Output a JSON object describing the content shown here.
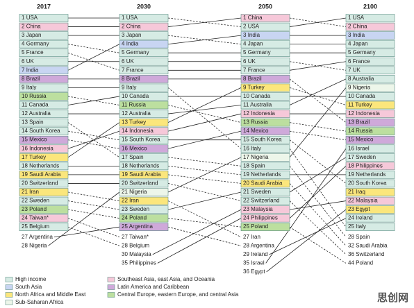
{
  "legend": [
    {
      "label": "High income",
      "color": "#d6ebe4"
    },
    {
      "label": "South Asia",
      "color": "#c8d5f2"
    },
    {
      "label": "North Africa and Middle East",
      "color": "#fbe67c"
    },
    {
      "label": "Sub-Saharan Africa",
      "color": "#edf6ea"
    },
    {
      "label": "Southeast Asia, east Asia, and Oceania",
      "color": "#f6c8d9"
    },
    {
      "label": "Latin America and Caribbean",
      "color": "#cfa9da"
    },
    {
      "label": "Central Europe, eastern Europe, and central Asia",
      "color": "#bcdf9f"
    }
  ],
  "columns": [
    {
      "year": "2017",
      "entries": [
        {
          "rank": "1",
          "country": "USA",
          "region": 0
        },
        {
          "rank": "2",
          "country": "China",
          "region": 4
        },
        {
          "rank": "3",
          "country": "Japan",
          "region": 0
        },
        {
          "rank": "4",
          "country": "Germany",
          "region": 0
        },
        {
          "rank": "5",
          "country": "France",
          "region": 0
        },
        {
          "rank": "6",
          "country": "UK",
          "region": 0
        },
        {
          "rank": "7",
          "country": "India",
          "region": 1
        },
        {
          "rank": "8",
          "country": "Brazil",
          "region": 5
        },
        {
          "rank": "9",
          "country": "Italy",
          "region": 0
        },
        {
          "rank": "10",
          "country": "Russia",
          "region": 6
        },
        {
          "rank": "11",
          "country": "Canada",
          "region": 0
        },
        {
          "rank": "12",
          "country": "Australia",
          "region": 0
        },
        {
          "rank": "13",
          "country": "Spain",
          "region": 0
        },
        {
          "rank": "14",
          "country": "South Korea",
          "region": 0
        },
        {
          "rank": "15",
          "country": "Mexico",
          "region": 5
        },
        {
          "rank": "16",
          "country": "Indonesia",
          "region": 4
        },
        {
          "rank": "17",
          "country": "Turkey",
          "region": 2
        },
        {
          "rank": "18",
          "country": "Netherlands",
          "region": 0
        },
        {
          "rank": "19",
          "country": "Saudi Arabia",
          "region": 2
        },
        {
          "rank": "20",
          "country": "Switzerland",
          "region": 0
        },
        {
          "rank": "21",
          "country": "Iran",
          "region": 2
        },
        {
          "rank": "22",
          "country": "Sweden",
          "region": 0
        },
        {
          "rank": "23",
          "country": "Poland",
          "region": 6
        },
        {
          "rank": "24",
          "country": "Taiwan*",
          "region": 4
        },
        {
          "rank": "25",
          "country": "Belgium",
          "region": 0
        }
      ],
      "beyond": [
        {
          "rank": "27",
          "country": "Argentina"
        },
        {
          "rank": "28",
          "country": "Nigeria"
        }
      ]
    },
    {
      "year": "2030",
      "entries": [
        {
          "rank": "1",
          "country": "USA",
          "region": 0
        },
        {
          "rank": "2",
          "country": "China",
          "region": 4
        },
        {
          "rank": "3",
          "country": "Japan",
          "region": 0
        },
        {
          "rank": "4",
          "country": "India",
          "region": 1
        },
        {
          "rank": "5",
          "country": "Germany",
          "region": 0
        },
        {
          "rank": "6",
          "country": "UK",
          "region": 0
        },
        {
          "rank": "7",
          "country": "France",
          "region": 0
        },
        {
          "rank": "8",
          "country": "Brazil",
          "region": 5
        },
        {
          "rank": "9",
          "country": "Italy",
          "region": 0
        },
        {
          "rank": "10",
          "country": "Canada",
          "region": 0
        },
        {
          "rank": "11",
          "country": "Russia",
          "region": 6
        },
        {
          "rank": "12",
          "country": "Australia",
          "region": 0
        },
        {
          "rank": "13",
          "country": "Turkey",
          "region": 2
        },
        {
          "rank": "14",
          "country": "Indonesia",
          "region": 4
        },
        {
          "rank": "15",
          "country": "South Korea",
          "region": 0
        },
        {
          "rank": "16",
          "country": "Mexico",
          "region": 5
        },
        {
          "rank": "17",
          "country": "Spain",
          "region": 0
        },
        {
          "rank": "18",
          "country": "Netherlands",
          "region": 0
        },
        {
          "rank": "19",
          "country": "Saudi Arabia",
          "region": 2
        },
        {
          "rank": "20",
          "country": "Switzerland",
          "region": 0
        },
        {
          "rank": "21",
          "country": "Nigeria",
          "region": 3
        },
        {
          "rank": "22",
          "country": "Iran",
          "region": 2
        },
        {
          "rank": "23",
          "country": "Sweden",
          "region": 0
        },
        {
          "rank": "24",
          "country": "Poland",
          "region": 6
        },
        {
          "rank": "25",
          "country": "Argentina",
          "region": 5
        }
      ],
      "beyond": [
        {
          "rank": "27",
          "country": "Taiwan*"
        },
        {
          "rank": "28",
          "country": "Belgium"
        },
        {
          "rank": "30",
          "country": "Malaysia"
        },
        {
          "rank": "35",
          "country": "Philippines"
        }
      ]
    },
    {
      "year": "2050",
      "entries": [
        {
          "rank": "1",
          "country": "China",
          "region": 4
        },
        {
          "rank": "2",
          "country": "USA",
          "region": 0
        },
        {
          "rank": "3",
          "country": "India",
          "region": 1
        },
        {
          "rank": "4",
          "country": "Japan",
          "region": 0
        },
        {
          "rank": "5",
          "country": "Germany",
          "region": 0
        },
        {
          "rank": "6",
          "country": "UK",
          "region": 0
        },
        {
          "rank": "7",
          "country": "France",
          "region": 0
        },
        {
          "rank": "8",
          "country": "Brazil",
          "region": 5
        },
        {
          "rank": "9",
          "country": "Turkey",
          "region": 2
        },
        {
          "rank": "10",
          "country": "Canada",
          "region": 0
        },
        {
          "rank": "11",
          "country": "Australia",
          "region": 0
        },
        {
          "rank": "12",
          "country": "Indonesia",
          "region": 4
        },
        {
          "rank": "13",
          "country": "Russia",
          "region": 6
        },
        {
          "rank": "14",
          "country": "Mexico",
          "region": 5
        },
        {
          "rank": "15",
          "country": "South Korea",
          "region": 0
        },
        {
          "rank": "16",
          "country": "Italy",
          "region": 0
        },
        {
          "rank": "17",
          "country": "Nigeria",
          "region": 3
        },
        {
          "rank": "18",
          "country": "Spain",
          "region": 0
        },
        {
          "rank": "19",
          "country": "Netherlands",
          "region": 0
        },
        {
          "rank": "20",
          "country": "Saudi Arabia",
          "region": 2
        },
        {
          "rank": "21",
          "country": "Sweden",
          "region": 0
        },
        {
          "rank": "22",
          "country": "Switzerland",
          "region": 0
        },
        {
          "rank": "23",
          "country": "Malaysia",
          "region": 4
        },
        {
          "rank": "24",
          "country": "Philippines",
          "region": 4
        },
        {
          "rank": "25",
          "country": "Poland",
          "region": 6
        }
      ],
      "beyond": [
        {
          "rank": "27",
          "country": "Iran"
        },
        {
          "rank": "28",
          "country": "Argentina"
        },
        {
          "rank": "29",
          "country": "Ireland"
        },
        {
          "rank": "35",
          "country": "Israel"
        },
        {
          "rank": "36",
          "country": "Egypt"
        }
      ]
    },
    {
      "year": "2100",
      "entries": [
        {
          "rank": "1",
          "country": "USA",
          "region": 0
        },
        {
          "rank": "2",
          "country": "China",
          "region": 4
        },
        {
          "rank": "3",
          "country": "India",
          "region": 1
        },
        {
          "rank": "4",
          "country": "Japan",
          "region": 0
        },
        {
          "rank": "5",
          "country": "Germany",
          "region": 0
        },
        {
          "rank": "6",
          "country": "France",
          "region": 0
        },
        {
          "rank": "7",
          "country": "UK",
          "region": 0
        },
        {
          "rank": "8",
          "country": "Australia",
          "region": 0
        },
        {
          "rank": "9",
          "country": "Nigeria",
          "region": 3
        },
        {
          "rank": "10",
          "country": "Canada",
          "region": 0
        },
        {
          "rank": "11",
          "country": "Turkey",
          "region": 2
        },
        {
          "rank": "12",
          "country": "Indonesia",
          "region": 4
        },
        {
          "rank": "13",
          "country": "Brazil",
          "region": 5
        },
        {
          "rank": "14",
          "country": "Russia",
          "region": 6
        },
        {
          "rank": "15",
          "country": "Mexico",
          "region": 5
        },
        {
          "rank": "16",
          "country": "Israel",
          "region": 0
        },
        {
          "rank": "17",
          "country": "Sweden",
          "region": 0
        },
        {
          "rank": "18",
          "country": "Philippines",
          "region": 4
        },
        {
          "rank": "19",
          "country": "Netherlands",
          "region": 0
        },
        {
          "rank": "20",
          "country": "South Korea",
          "region": 0
        },
        {
          "rank": "21",
          "country": "Iraq",
          "region": 2
        },
        {
          "rank": "22",
          "country": "Malaysia",
          "region": 4
        },
        {
          "rank": "23",
          "country": "Egypt",
          "region": 2
        },
        {
          "rank": "24",
          "country": "Ireland",
          "region": 0
        },
        {
          "rank": "25",
          "country": "Italy",
          "region": 0
        }
      ],
      "beyond": [
        {
          "rank": "28",
          "country": "Spain"
        },
        {
          "rank": "32",
          "country": "Saudi Arabia"
        },
        {
          "rank": "36",
          "country": "Switzerland"
        },
        {
          "rank": "44",
          "country": "Poland"
        }
      ]
    }
  ],
  "watermark": "思创网"
}
